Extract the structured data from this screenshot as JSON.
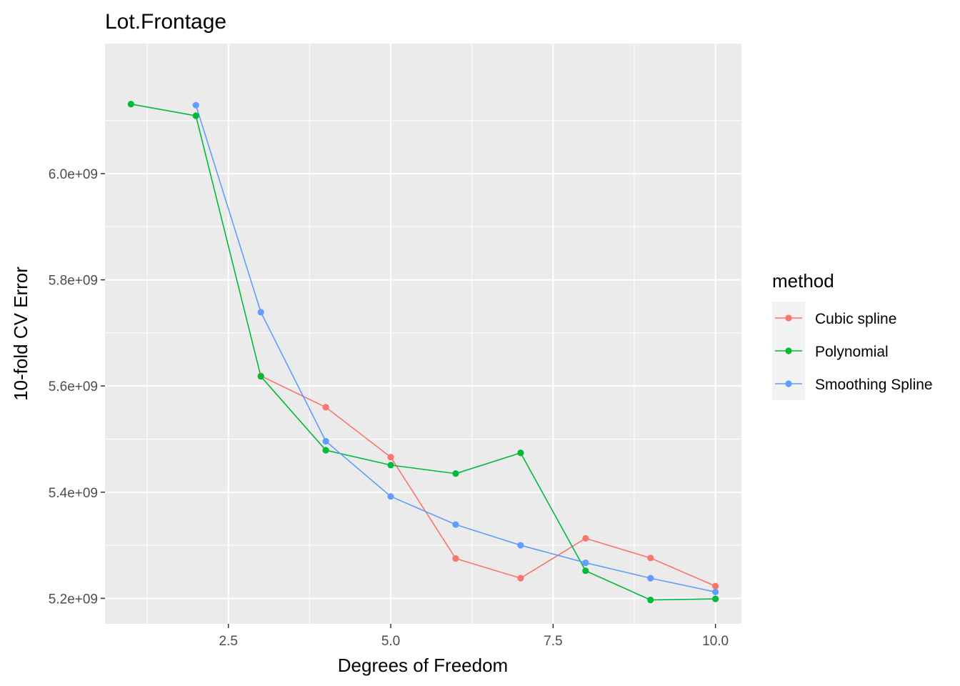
{
  "chart_data": {
    "type": "line",
    "title": "Lot.Frontage",
    "xlabel": "Degrees of Freedom",
    "ylabel": "10-fold CV Error",
    "xlim": [
      0.6,
      10.4
    ],
    "ylim": [
      5152000000.0,
      6245000000.0
    ],
    "x_ticks": [
      2.5,
      5.0,
      7.5,
      10.0
    ],
    "x_tick_labels": [
      "2.5",
      "5.0",
      "7.5",
      "10.0"
    ],
    "x_minor_ticks": [
      1.25,
      3.75,
      6.25,
      8.75
    ],
    "y_ticks": [
      5200000000.0,
      5400000000.0,
      5600000000.0,
      5800000000.0,
      6000000000.0
    ],
    "y_tick_labels": [
      "5.2e+09",
      "5.4e+09",
      "5.6e+09",
      "5.8e+09",
      "6.0e+09"
    ],
    "y_minor_ticks": [
      5300000000.0,
      5500000000.0,
      5700000000.0,
      5900000000.0,
      6100000000.0
    ],
    "grid": true,
    "legend": {
      "title": "method",
      "position": "right"
    },
    "series": [
      {
        "name": "Cubic spline",
        "color": "#F8766D",
        "x": [
          3,
          4,
          5,
          6,
          7,
          8,
          9,
          10
        ],
        "y": [
          5619000000.0,
          5560000000.0,
          5466000000.0,
          5275000000.0,
          5238000000.0,
          5313000000.0,
          5276000000.0,
          5223000000.0
        ]
      },
      {
        "name": "Polynomial",
        "color": "#00BA38",
        "x": [
          1,
          2,
          3,
          4,
          5,
          6,
          7,
          8,
          9,
          10
        ],
        "y": [
          6131000000.0,
          6109000000.0,
          5618000000.0,
          5479000000.0,
          5451000000.0,
          5435000000.0,
          5474000000.0,
          5252000000.0,
          5197000000.0,
          5199000000.0
        ]
      },
      {
        "name": "Smoothing Spline",
        "color": "#619CFF",
        "x": [
          2,
          3,
          4,
          5,
          6,
          7,
          8,
          9,
          10
        ],
        "y": [
          6129000000.0,
          5739000000.0,
          5496000000.0,
          5392000000.0,
          5339000000.0,
          5300000000.0,
          5267000000.0,
          5238000000.0,
          5212000000.0
        ]
      }
    ]
  }
}
